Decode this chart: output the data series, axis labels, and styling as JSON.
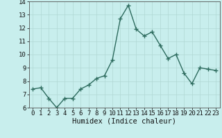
{
  "x": [
    0,
    1,
    2,
    3,
    4,
    5,
    6,
    7,
    8,
    9,
    10,
    11,
    12,
    13,
    14,
    15,
    16,
    17,
    18,
    19,
    20,
    21,
    22,
    23
  ],
  "y": [
    7.4,
    7.5,
    6.7,
    6.0,
    6.7,
    6.7,
    7.4,
    7.7,
    8.2,
    8.4,
    9.6,
    12.7,
    13.7,
    11.9,
    11.4,
    11.7,
    10.7,
    9.7,
    10.0,
    8.6,
    7.8,
    9.0,
    8.9,
    8.8
  ],
  "line_color": "#2d6b5e",
  "marker": "+",
  "marker_size": 4,
  "background_color": "#c8eeed",
  "grid_color": "#b0d8d4",
  "xlabel": "Humidex (Indice chaleur)",
  "ylim": [
    6,
    14
  ],
  "xlim": [
    -0.5,
    23.5
  ],
  "yticks": [
    6,
    7,
    8,
    9,
    10,
    11,
    12,
    13,
    14
  ],
  "xticks": [
    0,
    1,
    2,
    3,
    4,
    5,
    6,
    7,
    8,
    9,
    10,
    11,
    12,
    13,
    14,
    15,
    16,
    17,
    18,
    19,
    20,
    21,
    22,
    23
  ],
  "xlabel_fontsize": 7.5,
  "tick_fontsize": 6.5,
  "line_width": 1.0,
  "marker_edge_width": 1.0
}
